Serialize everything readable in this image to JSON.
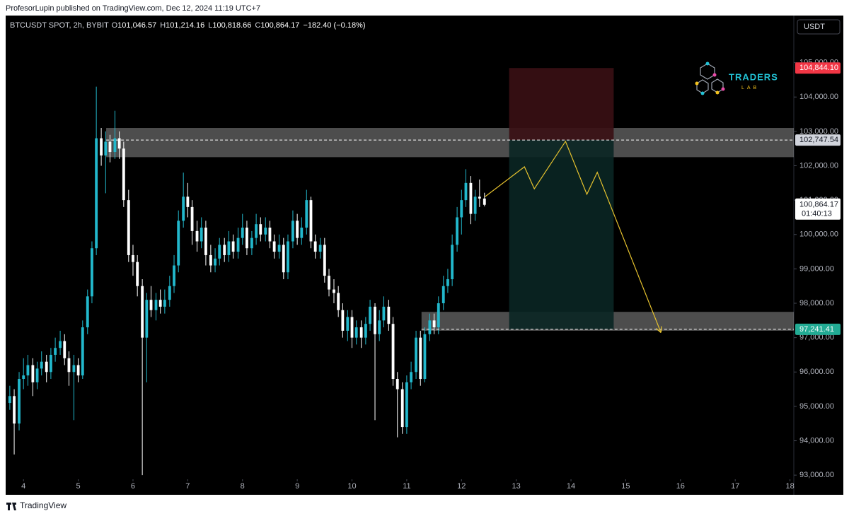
{
  "page": {
    "published": "ProfesorLupin published on TradingView.com, Dec 12, 2024 11:19 UTC+7",
    "footer": "TradingView",
    "currency": "USDT"
  },
  "chart_data": {
    "type": "candlestick",
    "symbol": "BTCUSDT SPOT, 2h, BYBIT",
    "ohlc_keys": [
      "O",
      "H",
      "L",
      "C"
    ],
    "ohlc_labels": [
      "101,046.57",
      "101,214.16",
      "100,818.66",
      "100,864.17"
    ],
    "change_label": "−182.40 (−0.18%)",
    "last_price_label": "100,864.17",
    "countdown": "01:40:13",
    "up_color": "#22b8cc",
    "down_color": "#ffffff",
    "grid": false,
    "xlim": [
      3.7,
      18.07
    ],
    "ylim": [
      92880,
      106370
    ],
    "xticks": [
      4,
      5,
      6,
      7,
      8,
      9,
      10,
      11,
      12,
      13,
      14,
      15,
      16,
      17,
      18
    ],
    "yticks": [
      {
        "value": 93000,
        "label": "93,000.00"
      },
      {
        "value": 94000,
        "label": "94,000.00"
      },
      {
        "value": 95000,
        "label": "95,000.00"
      },
      {
        "value": 96000,
        "label": "96,000.00"
      },
      {
        "value": 97000,
        "label": "97,000.00"
      },
      {
        "value": 98000,
        "label": "98,000.00"
      },
      {
        "value": 99000,
        "label": "99,000.00"
      },
      {
        "value": 100000,
        "label": "100,000.00"
      },
      {
        "value": 101000,
        "label": "101,000.00"
      },
      {
        "value": 102000,
        "label": "102,000.00"
      },
      {
        "value": 103000,
        "label": "103,000.00"
      },
      {
        "value": 104000,
        "label": "104,000.00"
      },
      {
        "value": 105000,
        "label": "105,000.00"
      }
    ],
    "x": [
      3.75,
      3.83,
      3.92,
      4,
      4.08,
      4.17,
      4.25,
      4.33,
      4.42,
      4.5,
      4.58,
      4.67,
      4.75,
      4.83,
      4.92,
      5,
      5.08,
      5.17,
      5.25,
      5.33,
      5.42,
      5.5,
      5.58,
      5.67,
      5.75,
      5.83,
      5.92,
      6,
      6.08,
      6.17,
      6.25,
      6.33,
      6.42,
      6.5,
      6.58,
      6.67,
      6.75,
      6.83,
      6.92,
      7,
      7.08,
      7.17,
      7.25,
      7.33,
      7.42,
      7.5,
      7.58,
      7.67,
      7.75,
      7.83,
      7.92,
      8,
      8.08,
      8.17,
      8.25,
      8.33,
      8.42,
      8.5,
      8.58,
      8.67,
      8.75,
      8.83,
      8.92,
      9,
      9.08,
      9.17,
      9.25,
      9.33,
      9.42,
      9.5,
      9.58,
      9.67,
      9.75,
      9.83,
      9.92,
      10,
      10.08,
      10.17,
      10.25,
      10.33,
      10.42,
      10.5,
      10.58,
      10.67,
      10.75,
      10.83,
      10.92,
      11,
      11.08,
      11.17,
      11.25,
      11.33,
      11.42,
      11.5,
      11.58,
      11.67,
      11.75,
      11.83,
      11.92,
      12,
      12.08,
      12.17,
      12.25,
      12.33,
      12.42
    ],
    "open": [
      95100,
      95300,
      94500,
      95800,
      95900,
      96200,
      95700,
      96100,
      96300,
      96000,
      96500,
      96700,
      96900,
      96400,
      96000,
      96200,
      95900,
      97300,
      98200,
      99600,
      102800,
      102300,
      102700,
      102400,
      102800,
      102500,
      101000,
      99400,
      99200,
      98500,
      97000,
      98100,
      97800,
      98100,
      97900,
      98100,
      98500,
      99100,
      100400,
      101100,
      100800,
      100100,
      99800,
      100200,
      99400,
      99100,
      99300,
      99700,
      99400,
      99800,
      99500,
      99900,
      100200,
      99600,
      99900,
      100300,
      100000,
      100200,
      99800,
      99500,
      99700,
      98900,
      99800,
      100400,
      99900,
      100200,
      101000,
      99800,
      99500,
      99700,
      98800,
      98400,
      98300,
      97800,
      97200,
      97600,
      97000,
      97300,
      97000,
      97400,
      97900,
      97100,
      97500,
      97900,
      97400,
      95800,
      95500,
      94400,
      95700,
      96000,
      97000,
      95800,
      97100,
      97500,
      97300,
      98000,
      98500,
      98700,
      99700,
      100500,
      101000,
      101500,
      100600,
      101100,
      101046.57
    ],
    "high": [
      95600,
      95500,
      96000,
      96400,
      96500,
      96400,
      96300,
      96600,
      96500,
      96700,
      97000,
      97200,
      97100,
      96600,
      96500,
      96400,
      97500,
      98400,
      99800,
      104300,
      103100,
      103000,
      102900,
      103600,
      103000,
      102700,
      101300,
      99700,
      99400,
      98700,
      98300,
      98500,
      98300,
      98400,
      98400,
      98800,
      99400,
      100700,
      101800,
      101500,
      101000,
      100400,
      100500,
      100400,
      99700,
      99600,
      99900,
      99900,
      100100,
      100000,
      100200,
      100600,
      100400,
      100100,
      100600,
      100500,
      100500,
      100400,
      100000,
      100000,
      99900,
      100000,
      100700,
      100600,
      100500,
      101300,
      101100,
      100000,
      99900,
      99900,
      99000,
      98700,
      98500,
      98000,
      97800,
      97800,
      97500,
      97500,
      97600,
      98100,
      98000,
      97800,
      98200,
      98100,
      97600,
      96000,
      95700,
      95900,
      96300,
      97200,
      97200,
      97300,
      97700,
      97700,
      98200,
      98800,
      99000,
      100000,
      100800,
      101300,
      101900,
      101700,
      101300,
      101600,
      101214.16
    ],
    "low": [
      94900,
      93600,
      94300,
      95500,
      95600,
      95300,
      95500,
      95900,
      95700,
      95800,
      96300,
      96500,
      96200,
      95600,
      94600,
      95700,
      95800,
      97100,
      98000,
      99400,
      102000,
      101200,
      102100,
      102200,
      102200,
      100800,
      99200,
      98800,
      98200,
      93000,
      95700,
      97600,
      97500,
      97700,
      97700,
      97900,
      98300,
      98900,
      100200,
      100500,
      99700,
      99500,
      99600,
      99100,
      98900,
      98900,
      99100,
      99200,
      99200,
      99300,
      99300,
      99700,
      99400,
      99400,
      99700,
      99800,
      99800,
      99600,
      99300,
      99300,
      98700,
      98700,
      99600,
      99700,
      99700,
      100000,
      99600,
      99300,
      99300,
      98600,
      98200,
      98000,
      97600,
      97000,
      96900,
      96700,
      96800,
      96700,
      96800,
      97200,
      94600,
      96900,
      97300,
      97200,
      95600,
      94100,
      94200,
      94200,
      95500,
      95800,
      95600,
      95700,
      96900,
      97100,
      97100,
      97800,
      98300,
      98500,
      99500,
      100000,
      100800,
      100300,
      100400,
      100800,
      100818.66
    ],
    "close": [
      95300,
      94500,
      95800,
      95900,
      96200,
      95700,
      96100,
      96300,
      96000,
      96500,
      96700,
      96900,
      96400,
      96000,
      96200,
      95900,
      97300,
      98200,
      99600,
      102800,
      102300,
      102700,
      102400,
      102800,
      102500,
      101000,
      99400,
      99200,
      98500,
      97000,
      98100,
      97800,
      98100,
      97900,
      98100,
      98500,
      99100,
      100400,
      101100,
      100800,
      100100,
      99800,
      100200,
      99400,
      99100,
      99300,
      99700,
      99400,
      99800,
      99500,
      99900,
      100200,
      99600,
      99900,
      100300,
      100000,
      100200,
      99800,
      99500,
      99700,
      98900,
      99800,
      100400,
      99900,
      100200,
      101000,
      99800,
      99500,
      99700,
      98800,
      98400,
      98300,
      97800,
      97200,
      97600,
      97000,
      97300,
      97000,
      97400,
      97900,
      97100,
      97500,
      97900,
      97400,
      95800,
      95500,
      94400,
      95700,
      96000,
      97000,
      95800,
      97100,
      97500,
      97300,
      98000,
      98500,
      98700,
      99700,
      100500,
      101000,
      101500,
      100600,
      101100,
      101046.57,
      100864.17
    ],
    "zones": [
      {
        "x0": 5.51,
        "y": [
          102250,
          103100
        ]
      },
      {
        "x0": 11.27,
        "y": [
          97200,
          97750
        ]
      }
    ],
    "position": {
      "x": [
        12.87,
        14.78
      ],
      "stop": {
        "value": 104844.1,
        "label": "104,844.10"
      },
      "entry": {
        "value": 102747.54,
        "label": "102,747.54"
      },
      "target": {
        "value": 97241.41,
        "label": "97,241.41"
      },
      "stop_color": "#3a0f14",
      "target_color": "#0a2624"
    },
    "projection": {
      "color": "#e6c22e",
      "x": [
        12.43,
        13.15,
        13.33,
        13.9,
        14.29,
        14.48,
        15.64
      ],
      "y": [
        101100,
        101970,
        101330,
        102710,
        101170,
        101810,
        97160
      ]
    },
    "watermark": {
      "title": "TRADERS",
      "subtitle": "LAB"
    }
  }
}
